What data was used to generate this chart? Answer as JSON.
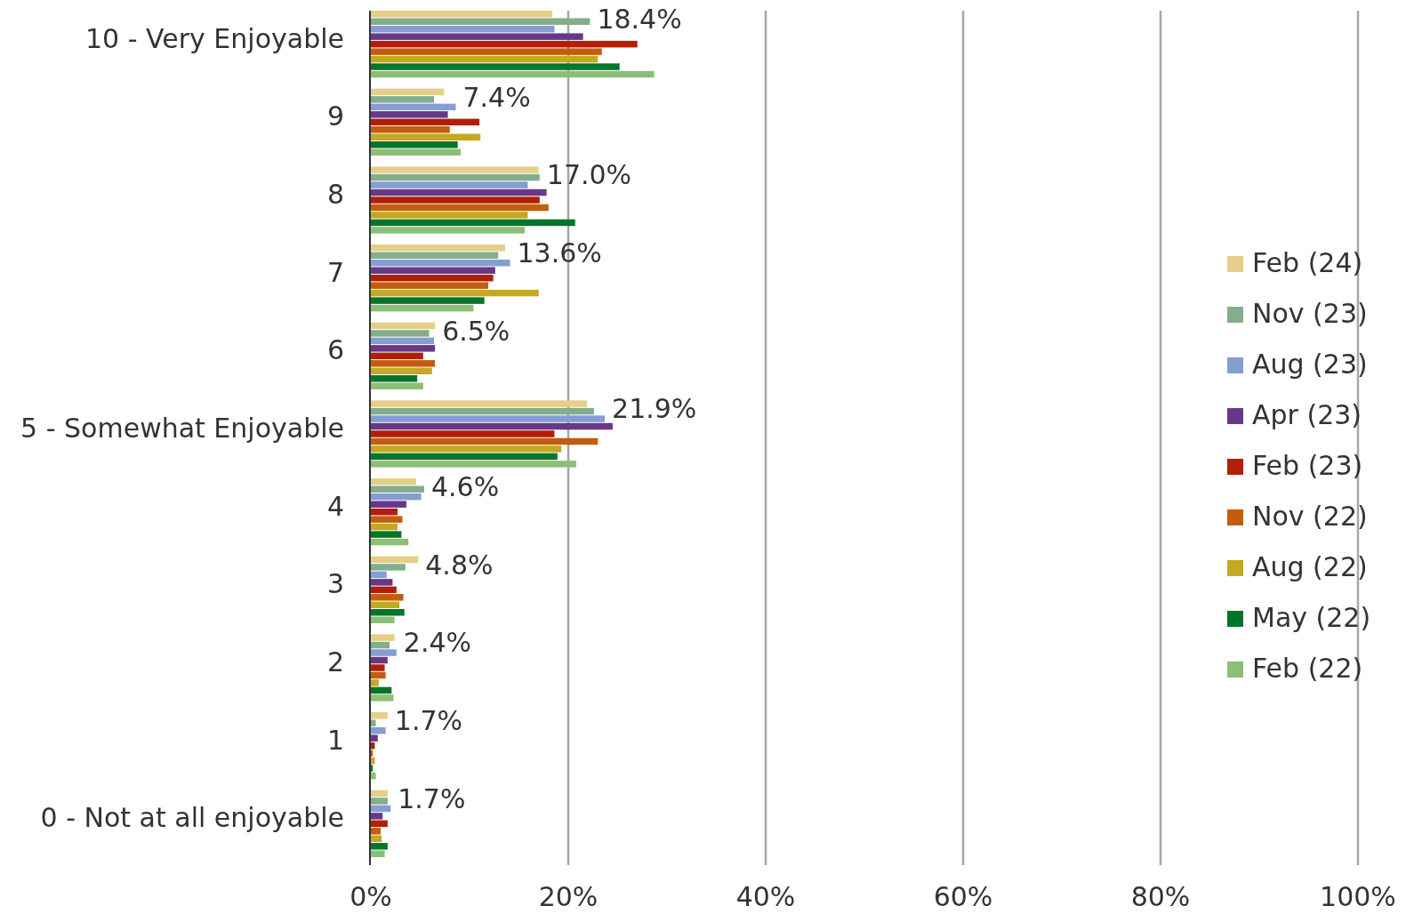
{
  "chart_data": {
    "type": "bar",
    "orientation": "horizontal",
    "categories": [
      "10 - Very Enjoyable",
      "9",
      "8",
      "7",
      "6",
      "5 - Somewhat Enjoyable",
      "4",
      "3",
      "2",
      "1",
      "0 - Not at all enjoyable"
    ],
    "series": [
      {
        "name": "Feb (24)",
        "color": "#e4cf8a",
        "values": [
          18.4,
          7.4,
          17.0,
          13.6,
          6.5,
          21.9,
          4.6,
          4.8,
          2.4,
          1.7,
          1.7
        ],
        "value_labels": [
          "18.4%",
          "7.4%",
          "17.0%",
          "13.6%",
          "6.5%",
          "21.9%",
          "4.6%",
          "4.8%",
          "2.4%",
          "1.7%",
          "1.7%"
        ]
      },
      {
        "name": "Nov (23)",
        "color": "#84ad8b",
        "values": [
          22.2,
          6.4,
          17.1,
          12.9,
          5.9,
          22.6,
          5.4,
          3.5,
          1.9,
          0.5,
          1.7
        ]
      },
      {
        "name": "Aug (23)",
        "color": "#859dd2",
        "values": [
          18.6,
          8.6,
          15.9,
          14.1,
          6.4,
          23.7,
          5.1,
          1.6,
          2.6,
          1.5,
          2.0
        ]
      },
      {
        "name": "Apr (23)",
        "color": "#683888",
        "values": [
          21.5,
          7.8,
          17.8,
          12.6,
          6.5,
          24.5,
          3.6,
          2.2,
          1.7,
          0.7,
          1.2
        ]
      },
      {
        "name": "Feb (23)",
        "color": "#b11f06",
        "values": [
          27.0,
          11.0,
          17.1,
          12.4,
          5.3,
          18.6,
          2.7,
          2.6,
          1.4,
          0.4,
          1.7
        ]
      },
      {
        "name": "Nov (22)",
        "color": "#c45c10",
        "values": [
          23.4,
          8.0,
          18.0,
          11.9,
          6.5,
          23.0,
          3.2,
          3.3,
          1.5,
          0.2,
          1.0
        ]
      },
      {
        "name": "Aug (22)",
        "color": "#c4a922",
        "values": [
          23.0,
          11.1,
          15.9,
          17.0,
          6.2,
          19.3,
          2.7,
          2.9,
          0.8,
          0.4,
          1.1
        ]
      },
      {
        "name": "May (22)",
        "color": "#007629",
        "values": [
          25.2,
          8.8,
          20.7,
          11.5,
          4.7,
          18.9,
          3.1,
          3.4,
          2.1,
          0.2,
          1.7
        ]
      },
      {
        "name": "Feb (22)",
        "color": "#8bbf78",
        "values": [
          28.7,
          9.1,
          15.6,
          10.4,
          5.3,
          20.8,
          3.8,
          2.4,
          2.3,
          0.5,
          1.4
        ]
      }
    ],
    "xlim": [
      0,
      100
    ],
    "xticks": [
      {
        "value": 0,
        "label": "0%"
      },
      {
        "value": 20,
        "label": "20%"
      },
      {
        "value": 40,
        "label": "40%"
      },
      {
        "value": 60,
        "label": "60%"
      },
      {
        "value": 80,
        "label": "80%"
      },
      {
        "value": 100,
        "label": "100%"
      }
    ],
    "grid": "x",
    "legend": "right"
  }
}
